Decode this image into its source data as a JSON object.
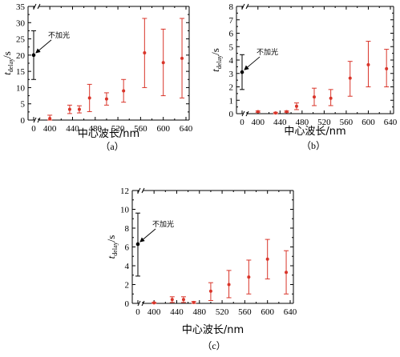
{
  "colors": {
    "baseline": "#000000",
    "series": "#d9352a"
  },
  "chart_data": [
    {
      "id": "a",
      "panel_label": "（a）",
      "type": "scatter",
      "xlabel": "中心波长/nm",
      "ylabel": "t",
      "ylabel_sub": "delay",
      "ylabel_unit": "/s",
      "x_ticks": [
        0,
        400,
        440,
        480,
        520,
        560,
        600,
        640
      ],
      "y_ticks": [
        0,
        5,
        10,
        15,
        20,
        25,
        30,
        35
      ],
      "ylim": [
        0,
        35
      ],
      "annotation": "不加光",
      "baseline_point": {
        "x": 0,
        "y": 20.0,
        "err_low": 12.5,
        "err_high": 27.5
      },
      "points": [
        {
          "x": 400,
          "y": 0.5,
          "err_low": 0.0,
          "err_high": 1.5
        },
        {
          "x": 435,
          "y": 3.3,
          "err_low": 2.0,
          "err_high": 4.6
        },
        {
          "x": 452,
          "y": 3.3,
          "err_low": 2.2,
          "err_high": 4.4
        },
        {
          "x": 470,
          "y": 6.8,
          "err_low": 2.6,
          "err_high": 11.0
        },
        {
          "x": 500,
          "y": 6.5,
          "err_low": 4.6,
          "err_high": 8.4
        },
        {
          "x": 530,
          "y": 9.0,
          "err_low": 5.5,
          "err_high": 12.5
        },
        {
          "x": 567,
          "y": 20.7,
          "err_low": 10.0,
          "err_high": 31.3
        },
        {
          "x": 600,
          "y": 17.7,
          "err_low": 7.5,
          "err_high": 28.0
        },
        {
          "x": 633,
          "y": 19.0,
          "err_low": 6.8,
          "err_high": 31.3
        }
      ]
    },
    {
      "id": "b",
      "panel_label": "（b）",
      "type": "scatter",
      "xlabel": "中心波长/nm",
      "ylabel": "t",
      "ylabel_sub": "delay",
      "ylabel_unit": "/s",
      "x_ticks": [
        0,
        400,
        440,
        480,
        520,
        560,
        600,
        640
      ],
      "y_ticks": [
        0,
        1,
        2,
        3,
        4,
        5,
        6,
        7,
        8
      ],
      "ylim": [
        0,
        8
      ],
      "annotation": "不加光",
      "baseline_point": {
        "x": 0,
        "y": 3.1,
        "err_low": 1.8,
        "err_high": 4.4
      },
      "points": [
        {
          "x": 400,
          "y": 0.15,
          "err_low": 0.1,
          "err_high": 0.2
        },
        {
          "x": 432,
          "y": 0.05,
          "err_low": 0.0,
          "err_high": 0.1
        },
        {
          "x": 452,
          "y": 0.15,
          "err_low": 0.1,
          "err_high": 0.2
        },
        {
          "x": 470,
          "y": 0.55,
          "err_low": 0.3,
          "err_high": 0.8
        },
        {
          "x": 502,
          "y": 1.25,
          "err_low": 0.6,
          "err_high": 1.9
        },
        {
          "x": 532,
          "y": 1.15,
          "err_low": 0.6,
          "err_high": 1.8
        },
        {
          "x": 567,
          "y": 2.65,
          "err_low": 1.3,
          "err_high": 3.9
        },
        {
          "x": 600,
          "y": 3.65,
          "err_low": 2.0,
          "err_high": 5.4
        },
        {
          "x": 633,
          "y": 3.35,
          "err_low": 2.0,
          "err_high": 4.8
        }
      ]
    },
    {
      "id": "c",
      "panel_label": "（c）",
      "type": "scatter",
      "xlabel": "中心波长/nm",
      "ylabel": "t",
      "ylabel_sub": "delay",
      "ylabel_unit": "/s",
      "x_ticks": [
        0,
        400,
        440,
        480,
        520,
        560,
        600,
        640
      ],
      "y_ticks": [
        0,
        2,
        4,
        6,
        8,
        10,
        12
      ],
      "ylim": [
        0,
        12
      ],
      "annotation": "不加光",
      "baseline_point": {
        "x": 0,
        "y": 6.3,
        "err_low": 2.9,
        "err_high": 9.6
      },
      "points": [
        {
          "x": 400,
          "y": 0.05,
          "err_low": 0.0,
          "err_high": 0.1
        },
        {
          "x": 432,
          "y": 0.4,
          "err_low": 0.1,
          "err_high": 0.7
        },
        {
          "x": 452,
          "y": 0.4,
          "err_low": 0.1,
          "err_high": 0.7
        },
        {
          "x": 470,
          "y": 0.1,
          "err_low": 0.0,
          "err_high": 0.2
        },
        {
          "x": 500,
          "y": 1.3,
          "err_low": 0.3,
          "err_high": 2.2
        },
        {
          "x": 532,
          "y": 2.0,
          "err_low": 0.6,
          "err_high": 3.5
        },
        {
          "x": 567,
          "y": 2.8,
          "err_low": 1.0,
          "err_high": 4.6
        },
        {
          "x": 600,
          "y": 4.7,
          "err_low": 2.6,
          "err_high": 6.8
        },
        {
          "x": 633,
          "y": 3.3,
          "err_low": 1.0,
          "err_high": 5.6
        }
      ]
    }
  ]
}
